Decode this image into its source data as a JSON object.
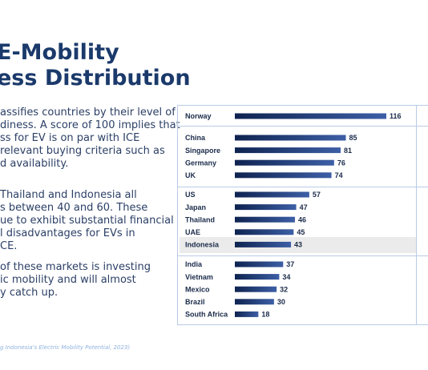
{
  "title": {
    "line1": "E-Mobility",
    "line2": "ess Distribution"
  },
  "paragraphs": {
    "p1": [
      "assifies countries by their level of",
      "diness. A score of 100 implies that",
      "ss for EV is on par with ICE",
      "relevant buying criteria such as",
      "d availability."
    ],
    "p2": [
      "Thailand and Indonesia all",
      "s between 40 and 60. These",
      "ue to exhibit substantial financial",
      "l disadvantages for EVs in",
      "CE."
    ],
    "p3": [
      "of these markets is investing",
      "ic mobility and will almost",
      "y catch up."
    ]
  },
  "source": "g Indonesia's Electric Mobility Potential, 2023)",
  "colors": {
    "title": "#1b3a6b",
    "text": "#2b3f66",
    "bar_dark": "#0e2350",
    "bar_light": "#3d5fa6",
    "frame": "#b9cbe8",
    "highlight": "#ebebeb"
  },
  "chart_data": {
    "type": "bar",
    "orientation": "horizontal",
    "highlighted": "Indonesia",
    "groups": [
      {
        "categories": [
          "Norway"
        ],
        "values": [
          116
        ]
      },
      {
        "categories": [
          "China",
          "Singapore",
          "Germany",
          "UK"
        ],
        "values": [
          85,
          81,
          76,
          74
        ]
      },
      {
        "categories": [
          "US",
          "Japan",
          "Thailand",
          "UAE",
          "Indonesia"
        ],
        "values": [
          57,
          47,
          46,
          45,
          43
        ]
      },
      {
        "categories": [
          "India",
          "Vietnam",
          "Mexico",
          "Brazil",
          "South Africa"
        ],
        "values": [
          37,
          34,
          32,
          30,
          18
        ]
      }
    ]
  }
}
